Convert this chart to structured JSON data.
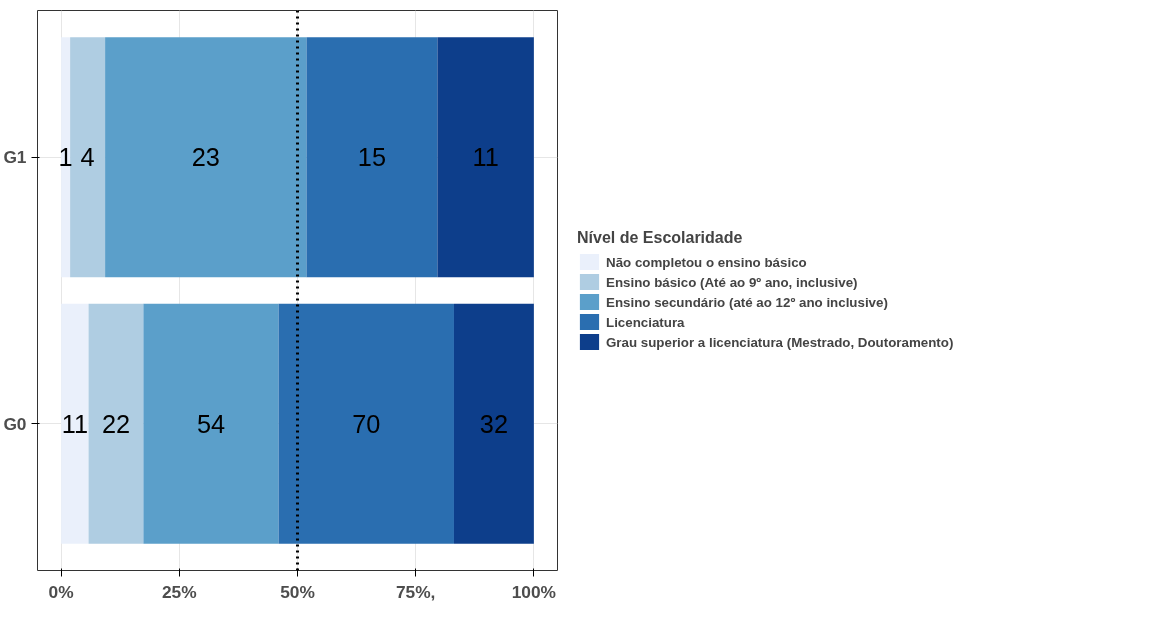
{
  "chart_data": {
    "type": "bar",
    "orientation": "horizontal",
    "stacked": true,
    "categories": [
      "G1",
      "G0"
    ],
    "series": [
      {
        "name": "Não completou o ensino básico",
        "color": "#eaf0fb",
        "values": [
          1.9,
          5.8
        ]
      },
      {
        "name": "Ensino básico (Até ao 9º ano, inclusive)",
        "color": "#afcde2",
        "values": [
          7.4,
          11.6
        ]
      },
      {
        "name": "Ensino secundário (até ao 12º ano inclusive)",
        "color": "#5b9fca",
        "values": [
          42.6,
          28.6
        ]
      },
      {
        "name": "Licenciatura",
        "color": "#2a6eb0",
        "values": [
          27.7,
          37.1
        ]
      },
      {
        "name": "Grau superior a licenciatura (Mestrado, Doutoramento)",
        "color": "#0d3e8b",
        "values": [
          20.4,
          16.9
        ]
      }
    ],
    "annotations": [
      "1",
      "4",
      "23",
      "15",
      "11",
      "11",
      "22",
      "54",
      "70",
      "32"
    ],
    "legend_title": "Nível de Escolaridade",
    "legend": "right",
    "xlim": [
      -5,
      105
    ],
    "xticks": [
      {
        "value": 0,
        "label": "0%"
      },
      {
        "value": 25,
        "label": "25%"
      },
      {
        "value": 50,
        "label": "50%"
      },
      {
        "value": 75,
        "label": "75%,"
      },
      {
        "value": 100,
        "label": "100%"
      }
    ],
    "ref_lines": [
      {
        "axis": "x",
        "value": 50,
        "label": null,
        "color": "#000000",
        "line_style": "dotted"
      }
    ],
    "grid": true
  }
}
